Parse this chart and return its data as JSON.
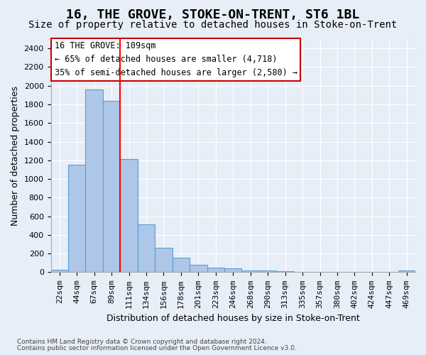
{
  "title": "16, THE GROVE, STOKE-ON-TRENT, ST6 1BL",
  "subtitle": "Size of property relative to detached houses in Stoke-on-Trent",
  "xlabel": "Distribution of detached houses by size in Stoke-on-Trent",
  "ylabel": "Number of detached properties",
  "footer_line1": "Contains HM Land Registry data © Crown copyright and database right 2024.",
  "footer_line2": "Contains public sector information licensed under the Open Government Licence v3.0.",
  "annotation_line1": "16 THE GROVE: 109sqm",
  "annotation_line2": "← 65% of detached houses are smaller (4,718)",
  "annotation_line3": "35% of semi-detached houses are larger (2,580) →",
  "bar_values": [
    30,
    1150,
    1960,
    1840,
    1210,
    510,
    265,
    155,
    80,
    50,
    40,
    20,
    15,
    10,
    5,
    5,
    5,
    5,
    5,
    5,
    20
  ],
  "bar_labels": [
    "22sqm",
    "44sqm",
    "67sqm",
    "89sqm",
    "111sqm",
    "134sqm",
    "156sqm",
    "178sqm",
    "201sqm",
    "223sqm",
    "246sqm",
    "268sqm",
    "290sqm",
    "313sqm",
    "335sqm",
    "357sqm",
    "380sqm",
    "402sqm",
    "424sqm",
    "447sqm",
    "469sqm"
  ],
  "ylim": [
    0,
    2500
  ],
  "yticks": [
    0,
    200,
    400,
    600,
    800,
    1000,
    1200,
    1400,
    1600,
    1800,
    2000,
    2200,
    2400
  ],
  "bar_color": "#aec6e8",
  "bar_edge_color": "#5a9fd4",
  "red_line_index": 4,
  "background_color": "#e8eef8",
  "grid_color": "#ffffff",
  "annotation_box_color": "#ffffff",
  "annotation_box_edge": "#cc0000",
  "title_fontsize": 13,
  "subtitle_fontsize": 10,
  "axis_label_fontsize": 9,
  "tick_fontsize": 8,
  "annotation_fontsize": 8.5
}
